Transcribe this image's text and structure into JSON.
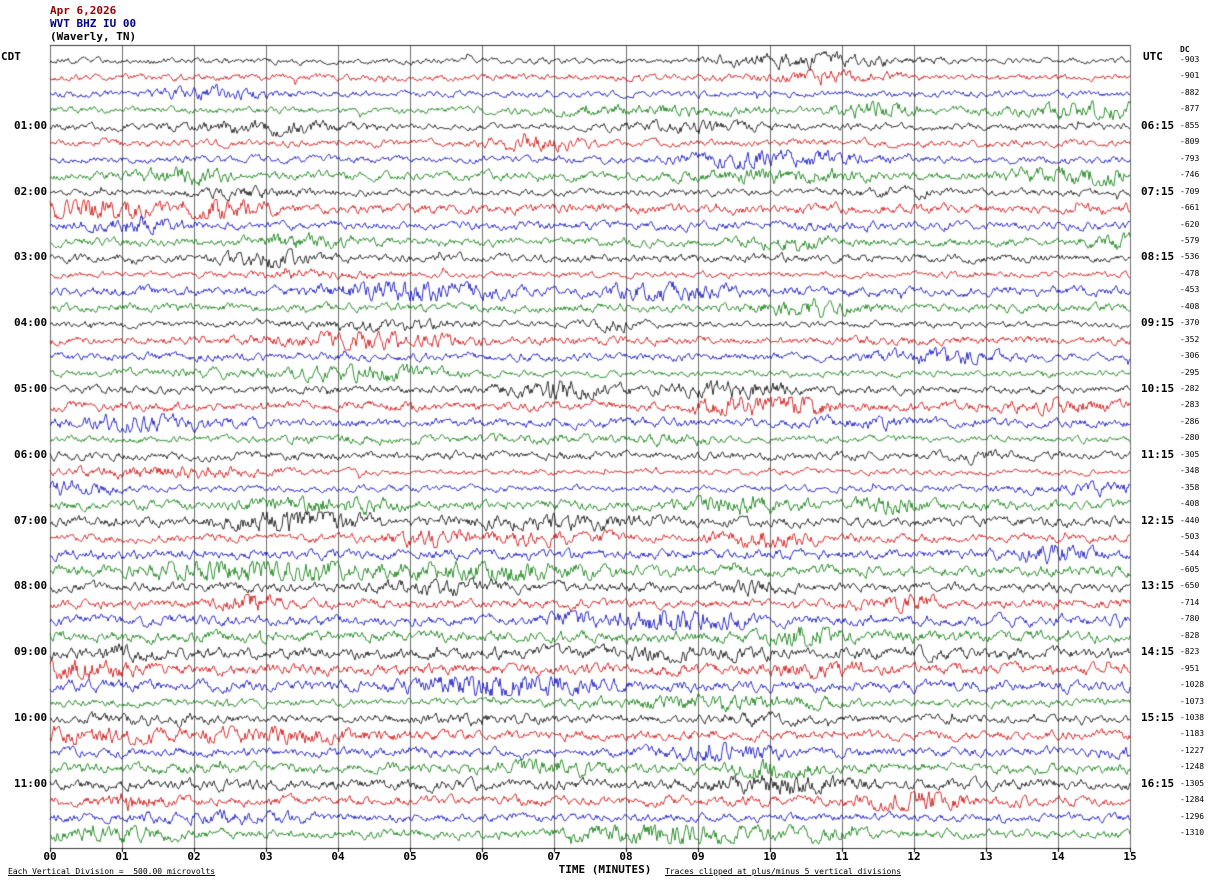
{
  "header": {
    "date": "Apr 6,2026",
    "station": "WVT BHZ IU 00",
    "location": "(Waverly, TN)",
    "left_timezone": "CDT",
    "right_timezone": "UTC",
    "dc_column_label": "DC"
  },
  "footer": {
    "scale_note": "Each Vertical Division =  500.00 microvolts",
    "xlabel": "TIME (MINUTES)",
    "clip_note": "Traces clipped at plus/minus 5 vertical divisions"
  },
  "palette": {
    "date_color": "#990000",
    "station_color": "#000088",
    "location_color": "#000000",
    "grid_color": "#6e6e6e",
    "axis_color": "#333333",
    "trace_colors": [
      "#000000",
      "#cc0000",
      "#0000bb",
      "#007700"
    ]
  },
  "chart_data": {
    "type": "line",
    "subtype": "seismogram-helicorder",
    "title": "WVT BHZ IU 00 (Waverly, TN) Apr 6,2026",
    "xlabel": "TIME (MINUTES)",
    "x_ticks": [
      "00",
      "01",
      "02",
      "03",
      "04",
      "05",
      "06",
      "07",
      "08",
      "09",
      "10",
      "11",
      "12",
      "13",
      "14",
      "15"
    ],
    "x_range_minutes": [
      0,
      15
    ],
    "minutes_per_line": 15,
    "traces_per_hour": 4,
    "division_microvolts": 500.0,
    "clip_divisions": 5,
    "trace_color_cycle": [
      "black",
      "red",
      "blue",
      "green"
    ],
    "rows": [
      {
        "left": "",
        "right": "",
        "dc": "-903"
      },
      {
        "left": "",
        "right": "",
        "dc": "-901"
      },
      {
        "left": "",
        "right": "",
        "dc": "-882"
      },
      {
        "left": "",
        "right": "",
        "dc": "-877"
      },
      {
        "left": "01:00",
        "right": "06:15",
        "dc": "-855"
      },
      {
        "left": "",
        "right": "",
        "dc": "-809"
      },
      {
        "left": "",
        "right": "",
        "dc": "-793"
      },
      {
        "left": "",
        "right": "",
        "dc": "-746"
      },
      {
        "left": "02:00",
        "right": "07:15",
        "dc": "-709"
      },
      {
        "left": "",
        "right": "",
        "dc": "-661"
      },
      {
        "left": "",
        "right": "",
        "dc": "-620"
      },
      {
        "left": "",
        "right": "",
        "dc": "-579"
      },
      {
        "left": "03:00",
        "right": "08:15",
        "dc": "-536"
      },
      {
        "left": "",
        "right": "",
        "dc": "-478"
      },
      {
        "left": "",
        "right": "",
        "dc": "-453"
      },
      {
        "left": "",
        "right": "",
        "dc": "-408"
      },
      {
        "left": "04:00",
        "right": "09:15",
        "dc": "-370"
      },
      {
        "left": "",
        "right": "",
        "dc": "-352"
      },
      {
        "left": "",
        "right": "",
        "dc": "-306"
      },
      {
        "left": "",
        "right": "",
        "dc": "-295"
      },
      {
        "left": "05:00",
        "right": "10:15",
        "dc": "-282"
      },
      {
        "left": "",
        "right": "",
        "dc": "-283"
      },
      {
        "left": "",
        "right": "",
        "dc": "-286"
      },
      {
        "left": "",
        "right": "",
        "dc": "-280"
      },
      {
        "left": "06:00",
        "right": "11:15",
        "dc": "-305"
      },
      {
        "left": "",
        "right": "",
        "dc": "-348"
      },
      {
        "left": "",
        "right": "",
        "dc": "-358"
      },
      {
        "left": "",
        "right": "",
        "dc": "-408"
      },
      {
        "left": "07:00",
        "right": "12:15",
        "dc": "-440"
      },
      {
        "left": "",
        "right": "",
        "dc": "-503"
      },
      {
        "left": "",
        "right": "",
        "dc": "-544"
      },
      {
        "left": "",
        "right": "",
        "dc": "-605"
      },
      {
        "left": "08:00",
        "right": "13:15",
        "dc": "-650"
      },
      {
        "left": "",
        "right": "",
        "dc": "-714"
      },
      {
        "left": "",
        "right": "",
        "dc": "-780"
      },
      {
        "left": "",
        "right": "",
        "dc": "-828"
      },
      {
        "left": "09:00",
        "right": "14:15",
        "dc": "-823"
      },
      {
        "left": "",
        "right": "",
        "dc": "-951"
      },
      {
        "left": "",
        "right": "",
        "dc": "-1028"
      },
      {
        "left": "",
        "right": "",
        "dc": "-1073"
      },
      {
        "left": "10:00",
        "right": "15:15",
        "dc": "-1038"
      },
      {
        "left": "",
        "right": "",
        "dc": "-1183"
      },
      {
        "left": "",
        "right": "",
        "dc": "-1227"
      },
      {
        "left": "",
        "right": "",
        "dc": "-1248"
      },
      {
        "left": "11:00",
        "right": "16:15",
        "dc": "-1305"
      },
      {
        "left": "",
        "right": "",
        "dc": "-1284"
      },
      {
        "left": "",
        "right": "",
        "dc": "-1296"
      },
      {
        "left": "",
        "right": "",
        "dc": "-1310"
      }
    ]
  }
}
